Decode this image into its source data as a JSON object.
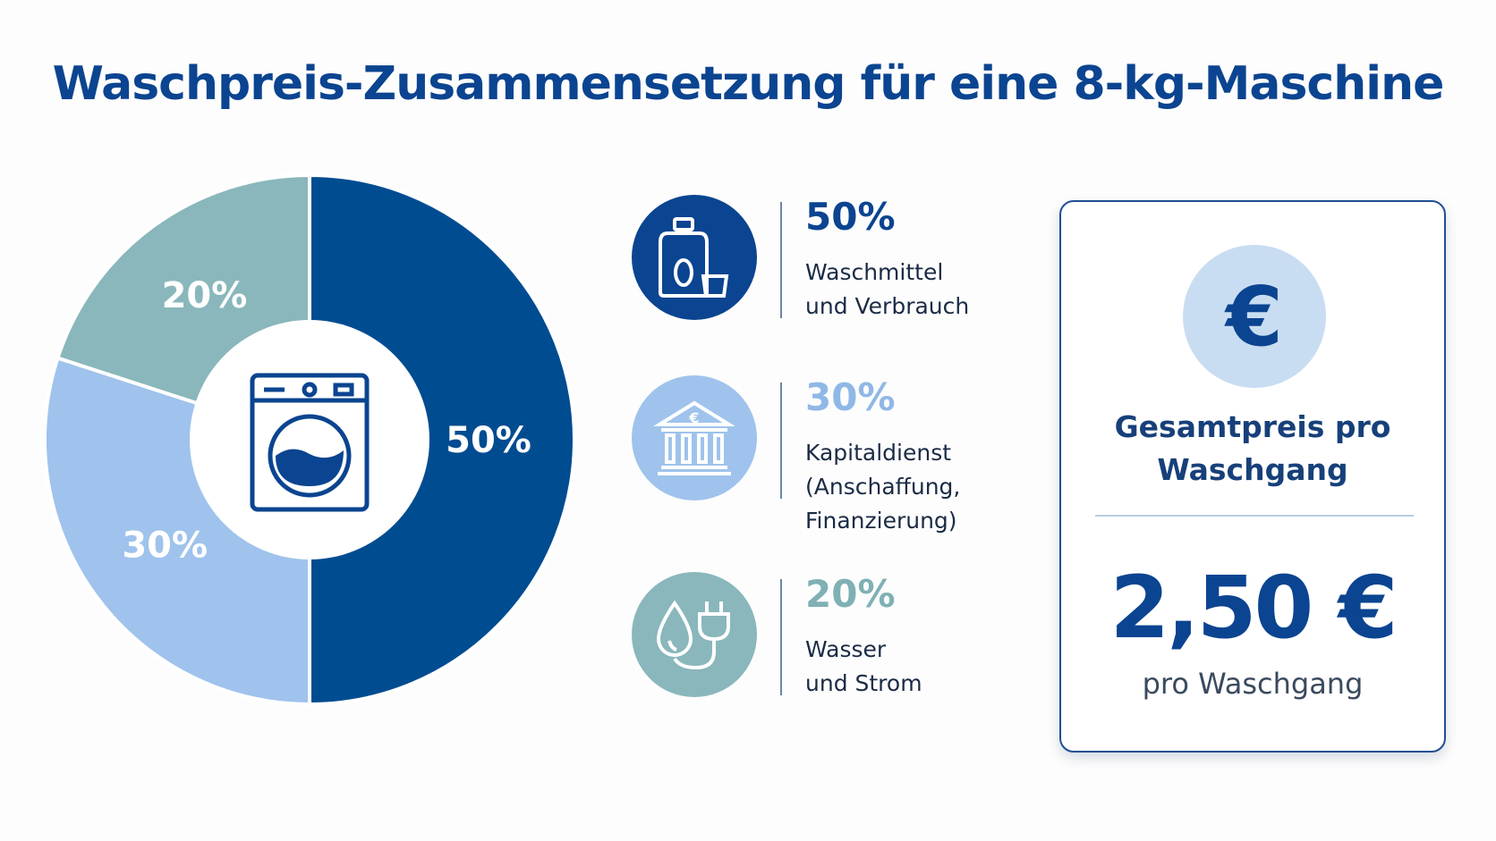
{
  "title": "Waschpreis-Zusammensetzung für eine 8-kg-Maschine",
  "chart_data": {
    "type": "pie",
    "title": "Waschpreis-Zusammensetzung für eine 8-kg-Maschine",
    "slices": [
      {
        "label": "50%",
        "value": 50,
        "color": "#004c91"
      },
      {
        "label": "30%",
        "value": 30,
        "color": "#9fc3ec"
      },
      {
        "label": "20%",
        "value": 20,
        "color": "#89b7bb"
      }
    ],
    "center_icon": "washing-machine-icon"
  },
  "legend": [
    {
      "percent": "50%",
      "line1": "Waschmittel",
      "line2": "und Verbrauch",
      "line3": "",
      "icon": "detergent-icon",
      "circle_color": "#0b4490",
      "text_color": "#0b4490"
    },
    {
      "percent": "30%",
      "line1": "Kapitaldienst",
      "line2": "(Anschaffung,",
      "line3": "Finanzierung)",
      "icon": "bank-icon",
      "circle_color": "#9fc3ec",
      "text_color": "#8fb8e6"
    },
    {
      "percent": "20%",
      "line1": "Wasser",
      "line2": "und Strom",
      "line3": "",
      "icon": "water-electricity-icon",
      "circle_color": "#89b7bb",
      "text_color": "#7fb0b4"
    }
  ],
  "summary": {
    "icon_symbol": "€",
    "label_line1": "Gesamtpreis pro",
    "label_line2": "Waschgang",
    "amount": "2,50 €",
    "unit": "pro Waschgang"
  }
}
